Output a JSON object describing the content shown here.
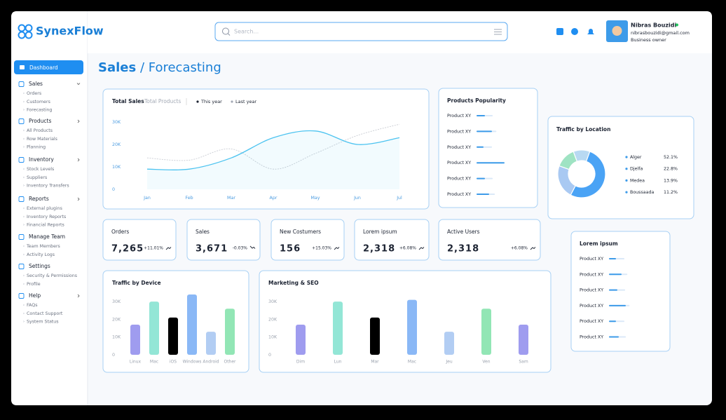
{
  "brand": "SynexFlow",
  "search_placeholder": "Search...",
  "user": {
    "name": "Nibras Bouzidi",
    "email": "nibrasbouzidi@gmail.com",
    "role": "Business owner"
  },
  "nav": [
    {
      "label": "Dashboard"
    },
    {
      "label": "Sales",
      "items": [
        "Orders",
        "Customers",
        "Forecasting"
      ]
    },
    {
      "label": "Products",
      "items": [
        "All Products",
        "Row Materials",
        "Planning"
      ]
    },
    {
      "label": "Inventory",
      "items": [
        "Stock Levels",
        "Suppliers",
        "Inventory Transfers"
      ]
    },
    {
      "label": "Reports",
      "items": [
        "External plugins",
        "Inventory Reports",
        "Financial Reports"
      ]
    },
    {
      "label": "Manage Team",
      "items": [
        "Team Members",
        "Activity Logs"
      ]
    },
    {
      "label": "Settings",
      "items": [
        "Security & Permissions",
        "Profile"
      ]
    },
    {
      "label": "Help",
      "items": [
        "FAQs",
        "Contact Support",
        "System Status"
      ]
    }
  ],
  "page_title": {
    "section": "Sales",
    "separator": "/",
    "page": "Forecasting"
  },
  "total_sales": {
    "type": "line",
    "tabs": [
      "Total Sales",
      "Total Products"
    ],
    "categories": [
      "Jan",
      "Feb",
      "Mar",
      "Apr",
      "May",
      "Jun",
      "Jul"
    ],
    "series": [
      {
        "name": "This year",
        "color": "#4cc3f0",
        "values": [
          9000,
          9000,
          14000,
          23000,
          26000,
          20000,
          23000
        ]
      },
      {
        "name": "Last year",
        "color": "#c9ccd3",
        "values": [
          14000,
          13000,
          18000,
          9000,
          16000,
          24000,
          29000
        ]
      }
    ],
    "ylim": [
      0,
      30000
    ],
    "yticks": [
      0,
      {
        "value": 10000,
        "label": "10K"
      },
      {
        "value": 20000,
        "label": "20K"
      },
      {
        "value": 30000,
        "label": "30K"
      }
    ]
  },
  "products_popularity": {
    "title": "Products Popularity",
    "labels": [
      "Product XY",
      "Product XY",
      "Product XY",
      "Product XY",
      "Product XY",
      "Product XY"
    ],
    "values": [
      30,
      55,
      25,
      100,
      30,
      45
    ]
  },
  "traffic_location": {
    "type": "pie",
    "title": "Traffic by Location",
    "categories": [
      "Alger",
      "Djelfa",
      "Medea",
      "Boussaada"
    ],
    "values": [
      52.1,
      22.8,
      13.9,
      11.2
    ],
    "value_labels": [
      "52.1%",
      "22.8%",
      "13.9%",
      "11.2%"
    ],
    "colors": [
      "#4aa3f5",
      "#a9c9f2",
      "#9fe3c3",
      "#b8d9f2"
    ]
  },
  "kpis": [
    {
      "title": "Orders",
      "value": "7,265",
      "change": "+11.01%"
    },
    {
      "title": "Sales",
      "value": "3,671",
      "change": "-0.03%"
    },
    {
      "title": "New Costumers",
      "value": "156",
      "change": "+15.03%"
    },
    {
      "title": "Lorem ipsum",
      "value": "2,318",
      "change": "+6.08%"
    },
    {
      "title": "Active Users",
      "value": "2,318",
      "change": "+6.08%"
    }
  ],
  "lorem_list": {
    "title": "Lorem ipsum",
    "labels": [
      "Product XY",
      "Product XY",
      "Product XY",
      "Product XY",
      "Product XY",
      "Product XY"
    ],
    "values": [
      25,
      45,
      30,
      60,
      25,
      35
    ]
  },
  "traffic_device": {
    "type": "bar",
    "title": "Traffic by Device",
    "categories": [
      "Linux",
      "Mac",
      "iOS",
      "Windows",
      "Android",
      "Other"
    ],
    "values": [
      17000,
      30000,
      21000,
      34000,
      13000,
      26000
    ],
    "colors": [
      "#9f9cef",
      "#93e6d6",
      "#000000",
      "#8ab8f6",
      "#b2cdf3",
      "#92e6b5"
    ],
    "ylim": [
      0,
      36000
    ],
    "yticks": [
      0,
      {
        "value": 10000,
        "label": "10K"
      },
      {
        "value": 20000,
        "label": "20K"
      },
      {
        "value": 30000,
        "label": "30K"
      }
    ]
  },
  "marketing_seo": {
    "type": "bar",
    "title": "Marketing & SEO",
    "categories": [
      "Dim",
      "Lun",
      "Mar",
      "Mac",
      "Jeu",
      "Ven",
      "Sam"
    ],
    "values": [
      17000,
      30000,
      21000,
      31000,
      13000,
      26000,
      17000
    ],
    "colors": [
      "#9f9cef",
      "#93e6d6",
      "#000000",
      "#8ab8f6",
      "#b2cdf3",
      "#92e6b5",
      "#9f9cef"
    ],
    "ylim": [
      0,
      36000
    ],
    "yticks": [
      0,
      {
        "value": 10000,
        "label": "10K"
      },
      {
        "value": 20000,
        "label": "20K"
      },
      {
        "value": 30000,
        "label": "30K"
      }
    ]
  }
}
